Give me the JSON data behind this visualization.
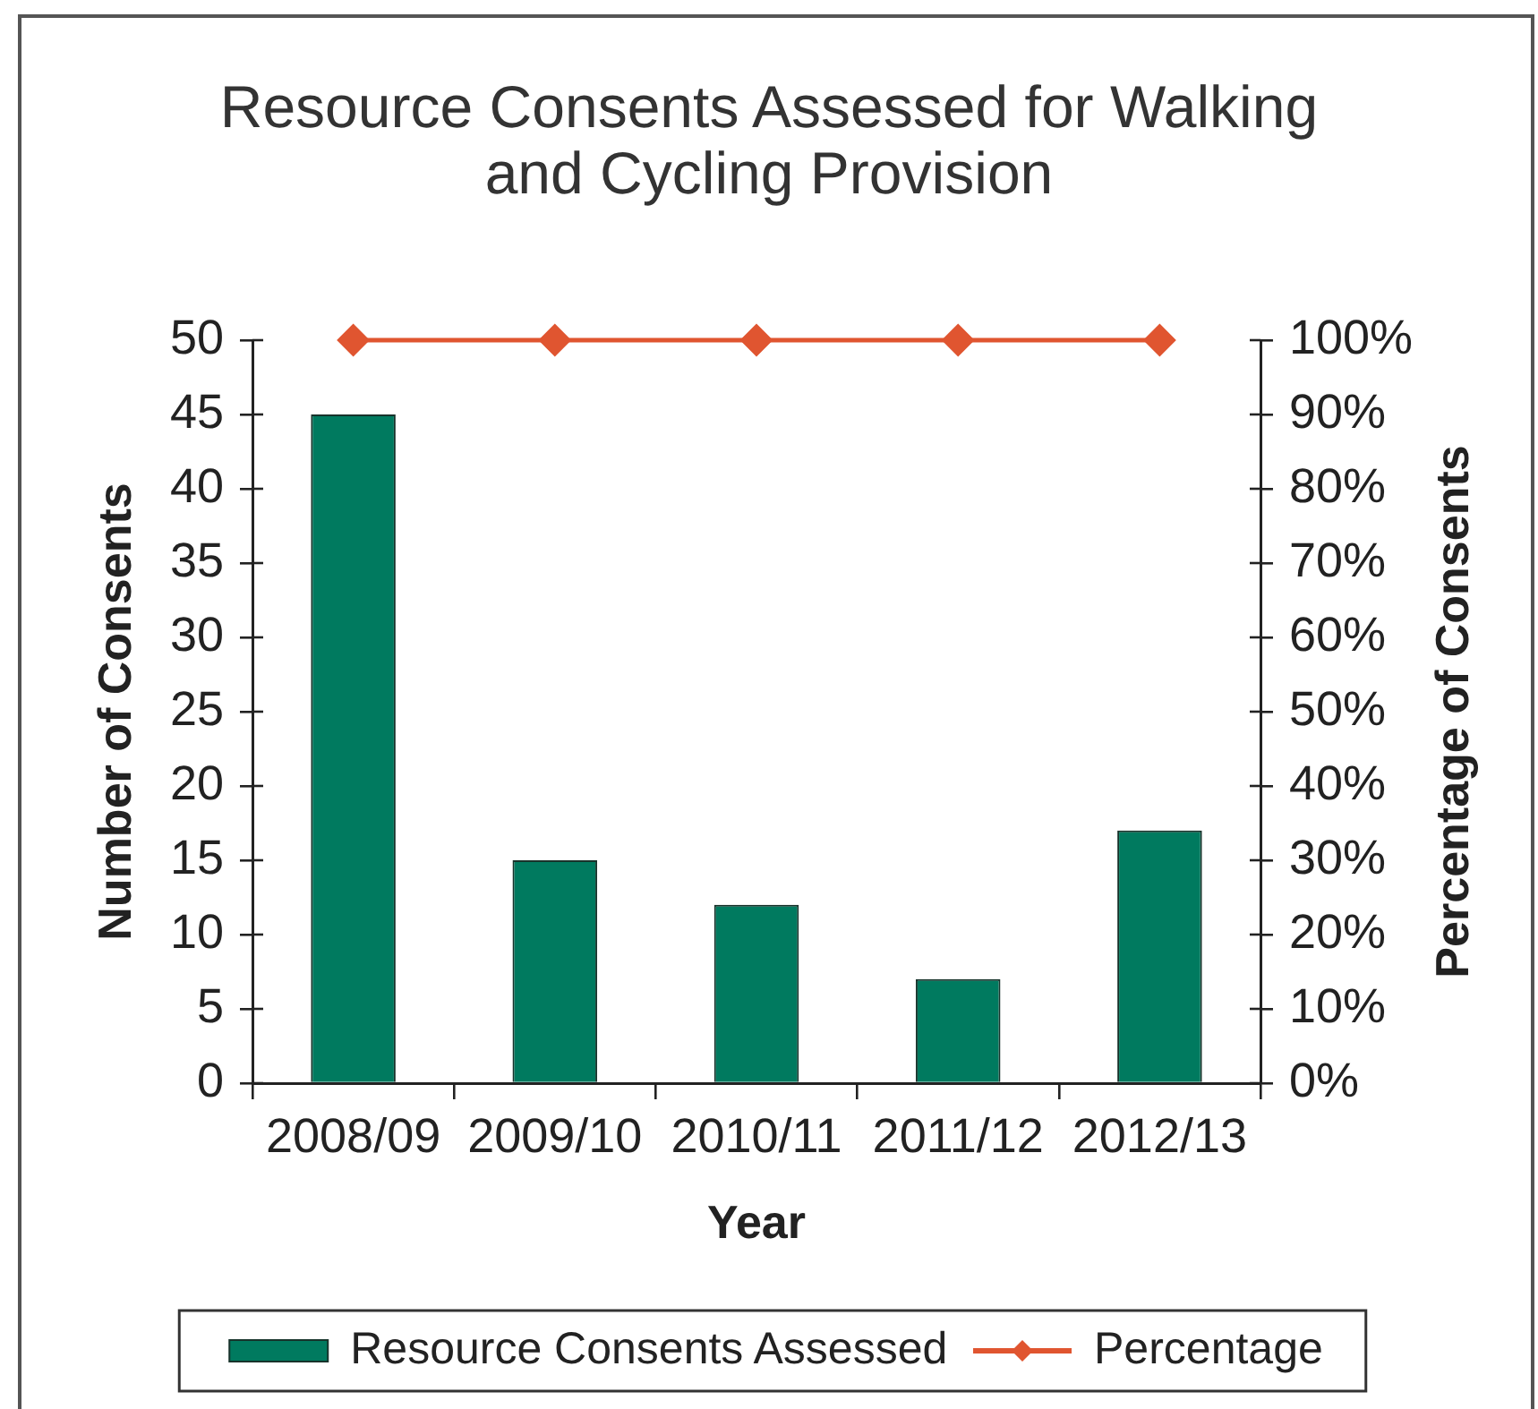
{
  "chart_data": {
    "type": "bar",
    "title": "Resource Consents Assessed for Walking and Cycling Provision",
    "xlabel": "Year",
    "ylabel": "Number of Consents",
    "y2label": "Percentage of Consents",
    "categories": [
      "2008/09",
      "2009/10",
      "2010/11",
      "2011/12",
      "2012/13"
    ],
    "series": [
      {
        "name": "Resource Consents Assessed",
        "color": "#007a5f",
        "values": [
          45,
          15,
          12,
          7,
          17
        ]
      },
      {
        "name": "Percentage",
        "type": "line",
        "axis": "y2",
        "color": "#e05530",
        "values": [
          100,
          100,
          100,
          100,
          100
        ]
      }
    ],
    "ylim": [
      0,
      50
    ],
    "yticks": [
      0,
      5,
      10,
      15,
      20,
      25,
      30,
      35,
      40,
      45,
      50
    ],
    "y2lim": [
      0,
      100
    ],
    "y2ticks": [
      {
        "value": 0,
        "label": "0%"
      },
      {
        "value": 10,
        "label": "10%"
      },
      {
        "value": 20,
        "label": "20%"
      },
      {
        "value": 30,
        "label": "30%"
      },
      {
        "value": 40,
        "label": "40%"
      },
      {
        "value": 50,
        "label": "50%"
      },
      {
        "value": 60,
        "label": "60%"
      },
      {
        "value": 70,
        "label": "70%"
      },
      {
        "value": 80,
        "label": "80%"
      },
      {
        "value": 90,
        "label": "90%"
      },
      {
        "value": 100,
        "label": "100%"
      }
    ],
    "grid": false,
    "legend": "bottom",
    "marker": "diamond",
    "line_style": "solid"
  }
}
